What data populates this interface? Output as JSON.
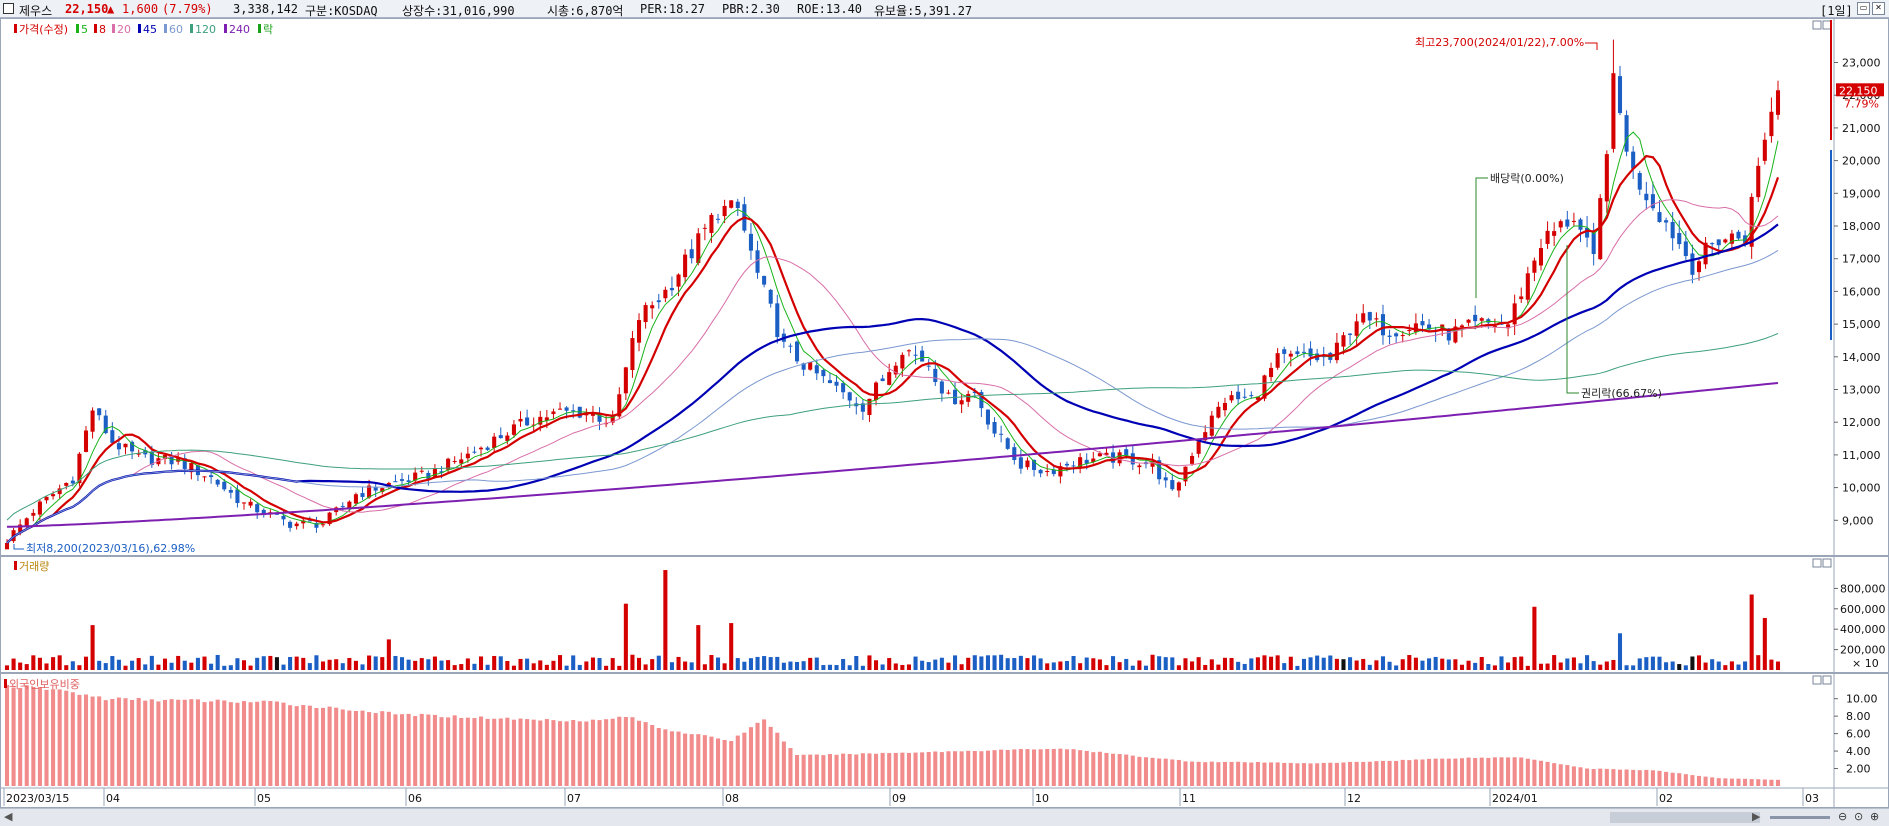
{
  "header": {
    "stock_name": "제우스",
    "price": "22,150",
    "change_arrow": "▲",
    "change": "1,600",
    "change_pct": "(7.79%)",
    "volume": "3,338,142",
    "market": "구분:KOSDAQ",
    "shares": "상장수:31,016,990",
    "market_cap": "시총:6,870억",
    "per": "PER:18.27",
    "pbr": "PBR:2.30",
    "roe": "ROE:13.40",
    "float_ratio": "유보율:5,391.27",
    "period": "[1일]"
  },
  "colors": {
    "up": "#d40000",
    "down": "#1c5fc4",
    "ma5": "#19b319",
    "ma8": "#d40000",
    "ma20": "#d96ea8",
    "ma45": "#0000b4",
    "ma60": "#7b98d0",
    "ma120": "#3ea07c",
    "ma240": "#7d1fb0",
    "foreign": "#f28b8b"
  },
  "chart_data": [
    {
      "type": "candlestick",
      "panel": "price",
      "legend": [
        "가격(수정)",
        "5",
        "8",
        "20",
        "45",
        "60",
        "120",
        "240",
        "락"
      ],
      "x_ticks": [
        "2023/03/15",
        "04",
        "05",
        "06",
        "07",
        "08",
        "09",
        "10",
        "11",
        "12",
        "2024/01",
        "02",
        "03"
      ],
      "y_ticks": [
        9000,
        10000,
        11000,
        12000,
        13000,
        14000,
        15000,
        16000,
        17000,
        18000,
        19000,
        20000,
        21000,
        22000,
        23000
      ],
      "y_tick_labels": [
        "9,000",
        "10,000",
        "11,000",
        "12,000",
        "13,000",
        "14,000",
        "15,000",
        "16,000",
        "17,000",
        "18,000",
        "19,000",
        "20,000",
        "21,000",
        "22,000",
        "23,000"
      ],
      "ylim": [
        8000,
        24300
      ],
      "last_price_label": "22,150",
      "last_change_label": "7.79%",
      "annotations": {
        "high": "최고23,700(2024/01/22),7.00%",
        "low": "최저8,200(2023/03/16),62.98%",
        "dividend": "배당락(0.00%)",
        "rights": "권리락(66.67%)"
      },
      "close_path": [
        [
          0,
          8400
        ],
        [
          4,
          9300
        ],
        [
          10,
          10300
        ],
        [
          13,
          12400
        ],
        [
          16,
          11400
        ],
        [
          20,
          10900
        ],
        [
          26,
          10800
        ],
        [
          31,
          10300
        ],
        [
          36,
          9500
        ],
        [
          43,
          8900
        ],
        [
          48,
          8900
        ],
        [
          53,
          9800
        ],
        [
          58,
          10100
        ],
        [
          64,
          10400
        ],
        [
          70,
          11000
        ],
        [
          76,
          11700
        ],
        [
          80,
          12100
        ],
        [
          84,
          12300
        ],
        [
          88,
          12300
        ],
        [
          92,
          12000
        ],
        [
          96,
          15200
        ],
        [
          100,
          16000
        ],
        [
          104,
          17200
        ],
        [
          108,
          18500
        ],
        [
          111,
          18500
        ],
        [
          114,
          16500
        ],
        [
          118,
          14300
        ],
        [
          122,
          13600
        ],
        [
          126,
          13000
        ],
        [
          130,
          12500
        ],
        [
          133,
          13300
        ],
        [
          136,
          14300
        ],
        [
          140,
          13800
        ],
        [
          143,
          12700
        ],
        [
          147,
          12900
        ],
        [
          150,
          11700
        ],
        [
          154,
          10700
        ],
        [
          158,
          10500
        ],
        [
          162,
          10800
        ],
        [
          166,
          10900
        ],
        [
          170,
          10900
        ],
        [
          174,
          10700
        ],
        [
          177,
          9800
        ],
        [
          181,
          11500
        ],
        [
          185,
          12700
        ],
        [
          189,
          12700
        ],
        [
          193,
          13900
        ],
        [
          197,
          14000
        ],
        [
          201,
          13900
        ],
        [
          205,
          15200
        ],
        [
          210,
          14800
        ],
        [
          214,
          15000
        ],
        [
          219,
          14700
        ],
        [
          224,
          15000
        ],
        [
          228,
          15000
        ],
        [
          233,
          17500
        ],
        [
          238,
          18300
        ],
        [
          241,
          16900
        ],
        [
          244,
          22300
        ],
        [
          247,
          19600
        ],
        [
          250,
          18700
        ],
        [
          253,
          17800
        ],
        [
          256,
          16800
        ],
        [
          260,
          17600
        ],
        [
          264,
          17700
        ],
        [
          267,
          20800
        ],
        [
          269,
          22150
        ]
      ]
    },
    {
      "type": "bar",
      "panel": "volume",
      "title": "거래량",
      "y_ticks": [
        200000,
        400000,
        600000,
        800000
      ],
      "y_tick_labels": [
        "200,000",
        "400,000",
        "600,000",
        "800,000"
      ],
      "unit": "× 10",
      "ylim": [
        0,
        1000000
      ],
      "spikes": [
        [
          13,
          440000
        ],
        [
          58,
          300000
        ],
        [
          94,
          650000
        ],
        [
          100,
          980000
        ],
        [
          105,
          440000
        ],
        [
          110,
          460000
        ],
        [
          232,
          620000
        ],
        [
          245,
          360000
        ],
        [
          265,
          740000
        ],
        [
          267,
          510000
        ]
      ]
    },
    {
      "type": "bar",
      "panel": "foreign",
      "title": "외국인보유비중",
      "y_ticks": [
        2,
        4,
        6,
        8,
        10
      ],
      "y_tick_labels": [
        "2.00",
        "4.00",
        "6.00",
        "8.00",
        "10.00"
      ],
      "ylim": [
        0,
        12.6
      ],
      "path": [
        [
          0,
          11.5
        ],
        [
          8,
          11.0
        ],
        [
          15,
          10.0
        ],
        [
          40,
          9.6
        ],
        [
          60,
          8.2
        ],
        [
          80,
          7.6
        ],
        [
          90,
          7.5
        ],
        [
          94,
          8.0
        ],
        [
          100,
          6.5
        ],
        [
          110,
          5.2
        ],
        [
          115,
          7.7
        ],
        [
          120,
          3.5
        ],
        [
          140,
          3.9
        ],
        [
          160,
          4.3
        ],
        [
          180,
          2.8
        ],
        [
          200,
          2.6
        ],
        [
          220,
          3.2
        ],
        [
          230,
          3.3
        ],
        [
          240,
          2.0
        ],
        [
          250,
          1.8
        ],
        [
          260,
          0.9
        ],
        [
          269,
          0.7
        ]
      ]
    }
  ]
}
